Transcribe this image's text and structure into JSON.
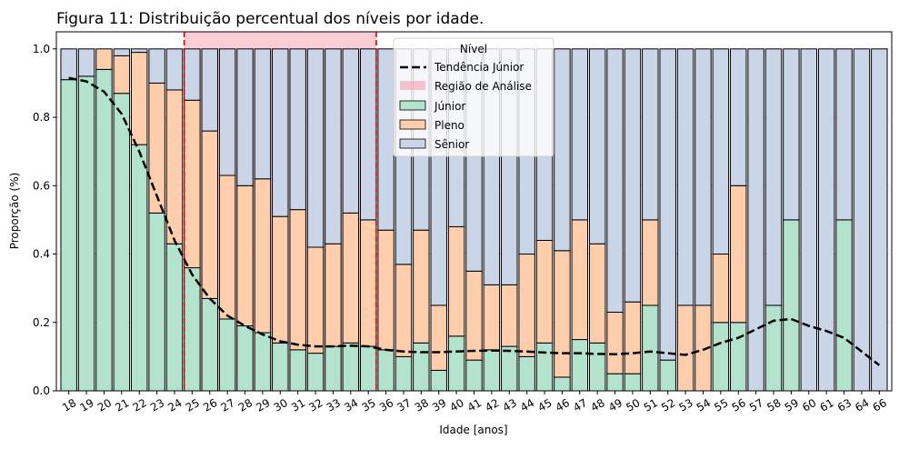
{
  "chart_data": {
    "type": "bar",
    "stacked": true,
    "title": "Figura 11: Distribuição percentual dos níveis por idade.",
    "xlabel": "Idade [anos]",
    "ylabel": "Proporção (%)",
    "ylim": [
      0,
      1.05
    ],
    "yticks": [
      "0.0",
      "0.2",
      "0.4",
      "0.6",
      "0.8",
      "1.0"
    ],
    "grid": "horizontal dashed",
    "categories": [
      "18",
      "19",
      "20",
      "21",
      "22",
      "23",
      "24",
      "25",
      "26",
      "27",
      "28",
      "29",
      "30",
      "31",
      "32",
      "33",
      "34",
      "35",
      "36",
      "37",
      "38",
      "39",
      "40",
      "41",
      "42",
      "43",
      "44",
      "45",
      "46",
      "47",
      "48",
      "49",
      "50",
      "51",
      "52",
      "53",
      "54",
      "55",
      "56",
      "57",
      "58",
      "59",
      "60",
      "61",
      "63",
      "64",
      "66"
    ],
    "series": [
      {
        "name": "Júnior",
        "color": "#b3e2cd",
        "values": [
          0.91,
          0.92,
          0.94,
          0.87,
          0.72,
          0.52,
          0.43,
          0.36,
          0.27,
          0.21,
          0.19,
          0.17,
          0.14,
          0.12,
          0.11,
          0.13,
          0.14,
          0.13,
          0.12,
          0.1,
          0.14,
          0.06,
          0.16,
          0.09,
          0.12,
          0.13,
          0.1,
          0.14,
          0.04,
          0.15,
          0.14,
          0.05,
          0.05,
          0.25,
          0.09,
          0.0,
          0.0,
          0.2,
          0.2,
          0.0,
          0.25,
          0.5,
          0.0,
          0.0,
          0.5,
          0.0,
          0.0
        ]
      },
      {
        "name": "Pleno",
        "color": "#fdcdac",
        "values": [
          0.0,
          0.0,
          0.06,
          0.11,
          0.27,
          0.38,
          0.45,
          0.49,
          0.49,
          0.42,
          0.41,
          0.45,
          0.37,
          0.41,
          0.31,
          0.3,
          0.38,
          0.37,
          0.35,
          0.27,
          0.33,
          0.19,
          0.32,
          0.26,
          0.19,
          0.18,
          0.3,
          0.3,
          0.37,
          0.35,
          0.29,
          0.18,
          0.21,
          0.25,
          0.0,
          0.25,
          0.25,
          0.2,
          0.4,
          0.0,
          0.0,
          0.0,
          0.0,
          0.0,
          0.0,
          0.0,
          0.0
        ]
      },
      {
        "name": "Sênior",
        "color": "#cbd5e8",
        "values": [
          0.09,
          0.08,
          0.0,
          0.02,
          0.01,
          0.1,
          0.12,
          0.15,
          0.24,
          0.37,
          0.4,
          0.38,
          0.49,
          0.47,
          0.58,
          0.57,
          0.48,
          0.5,
          0.53,
          0.63,
          0.53,
          0.75,
          0.52,
          0.65,
          0.69,
          0.69,
          0.6,
          0.56,
          0.59,
          0.5,
          0.57,
          0.77,
          0.74,
          0.5,
          0.91,
          0.75,
          0.75,
          0.6,
          0.4,
          1.0,
          0.75,
          0.5,
          1.0,
          1.0,
          0.5,
          1.0,
          1.0
        ]
      }
    ],
    "trend": {
      "name": "Tendência Júnior",
      "values": [
        0.915,
        0.905,
        0.875,
        0.81,
        0.7,
        0.57,
        0.44,
        0.34,
        0.27,
        0.22,
        0.19,
        0.165,
        0.145,
        0.135,
        0.13,
        0.13,
        0.132,
        0.13,
        0.12,
        0.115,
        0.113,
        0.113,
        0.115,
        0.117,
        0.118,
        0.117,
        0.115,
        0.112,
        0.11,
        0.11,
        0.108,
        0.107,
        0.11,
        0.115,
        0.11,
        0.105,
        0.12,
        0.14,
        0.155,
        0.18,
        0.205,
        0.21,
        0.19,
        0.175,
        0.155,
        0.115,
        0.075
      ]
    },
    "analysis_region": {
      "name": "Região de Análise",
      "from": "25",
      "to": "35",
      "color": "#f4a6b4"
    },
    "legend": {
      "title": "Nível",
      "position": "top-center"
    }
  }
}
